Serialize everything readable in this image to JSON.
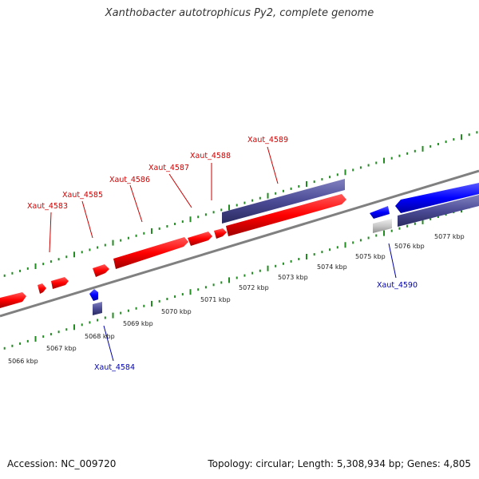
{
  "title": "Xanthobacter autotrophicus Py2, complete genome",
  "footer": {
    "accession": "Accession: NC_009720",
    "summary": "Topology: circular; Length: 5,308,934 bp; Genes: 4,805"
  },
  "colors": {
    "forward_gene": "#ff0000",
    "reverse_gene": "#0000ff",
    "forward_label": "#cc0000",
    "reverse_label": "#0000aa",
    "cds_feature": "#4b4b96",
    "other_feature": "#c8c8c8",
    "backbone": "#808080",
    "ticks": "#228b22",
    "tick_labels": "#222222"
  },
  "scale_labels": [
    "5066 kbp",
    "5067 kbp",
    "5068 kbp",
    "5069 kbp",
    "5070 kbp",
    "5071 kbp",
    "5072 kbp",
    "5073 kbp",
    "5074 kbp",
    "5075 kbp",
    "5076 kbp",
    "5077 kbp"
  ],
  "gene_labels": [
    {
      "text": "Xaut_4583",
      "strand": "forward"
    },
    {
      "text": "Xaut_4585",
      "strand": "forward"
    },
    {
      "text": "Xaut_4586",
      "strand": "forward"
    },
    {
      "text": "Xaut_4587",
      "strand": "forward"
    },
    {
      "text": "Xaut_4588",
      "strand": "forward"
    },
    {
      "text": "Xaut_4589",
      "strand": "forward"
    },
    {
      "text": "Xaut_4584",
      "strand": "reverse"
    },
    {
      "text": "Xaut_4590",
      "strand": "reverse"
    }
  ]
}
